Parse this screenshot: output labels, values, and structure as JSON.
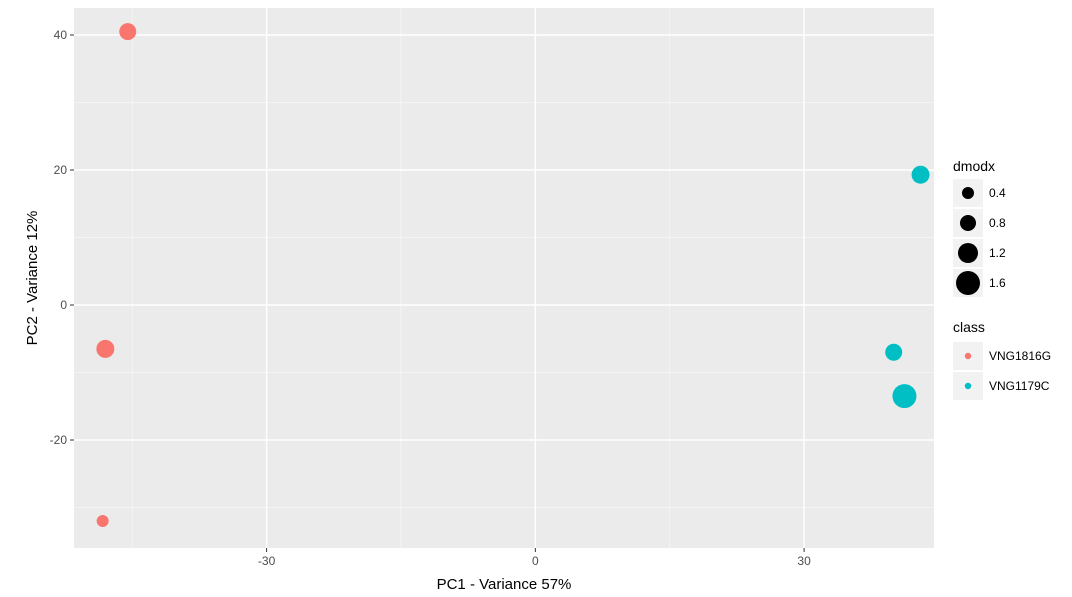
{
  "chart_data": {
    "type": "scatter",
    "xlabel": "PC1 - Variance 57%",
    "ylabel": "PC2 - Variance 12%",
    "xlim": [
      -51.5,
      44.5
    ],
    "ylim": [
      -36,
      44
    ],
    "xticks": [
      -30,
      0,
      30
    ],
    "yticks": [
      -20,
      0,
      20,
      40
    ],
    "grid": true,
    "background": "#ebebeb",
    "gridline_color": "#ffffff",
    "legend_position": "right",
    "size_legend": {
      "title": "dmodx",
      "entries": [
        {
          "label": "0.4",
          "value": 0.4
        },
        {
          "label": "0.8",
          "value": 0.8
        },
        {
          "label": "1.2",
          "value": 1.2
        },
        {
          "label": "1.6",
          "value": 1.6
        }
      ],
      "color": "#000000"
    },
    "color_legend": {
      "title": "class",
      "entries": [
        {
          "label": "VNG1816G",
          "color": "#f8766d"
        },
        {
          "label": "VNG1179C",
          "color": "#00bfc4"
        }
      ]
    },
    "series": [
      {
        "name": "VNG1816G",
        "color": "#f8766d",
        "points": [
          {
            "x": -45.5,
            "y": 40.5,
            "dmodx": 0.9
          },
          {
            "x": -48.0,
            "y": -6.5,
            "dmodx": 1.0
          },
          {
            "x": -48.3,
            "y": -32.0,
            "dmodx": 0.4
          }
        ]
      },
      {
        "name": "VNG1179C",
        "color": "#00bfc4",
        "points": [
          {
            "x": 43.0,
            "y": 19.3,
            "dmodx": 1.0
          },
          {
            "x": 40.0,
            "y": -7.0,
            "dmodx": 0.9
          },
          {
            "x": 41.2,
            "y": -13.5,
            "dmodx": 1.6
          }
        ]
      }
    ]
  }
}
